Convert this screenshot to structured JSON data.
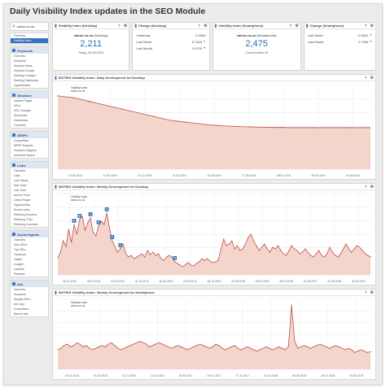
{
  "page": {
    "title": "Daily Visibility Index updates in the SEO Module"
  },
  "colors": {
    "accent": "#3b73c0",
    "line": "#c0504d",
    "fill": "#f4d5cc",
    "negative": "#d9534f"
  },
  "sidebar": {
    "search_value": "sdeon.co.uk",
    "groups": [
      {
        "icon": "search-icon",
        "title": "",
        "items": [
          {
            "label": "Overview",
            "state": ""
          },
          {
            "label": "Visibility Index",
            "state": "active"
          }
        ]
      },
      {
        "icon": "keywords-icon",
        "title": "Keywords",
        "items": [
          {
            "label": "Overview",
            "state": ""
          },
          {
            "label": "Keywords",
            "state": ""
          },
          {
            "label": "Keyword Ideas",
            "state": ""
          },
          {
            "label": "Keyword Groups",
            "state": ""
          },
          {
            "label": "Ranking Changes",
            "state": ""
          },
          {
            "label": "Ranking Distribution",
            "state": ""
          },
          {
            "label": "Opportunities",
            "state": ""
          }
        ]
      },
      {
        "icon": "structure-icon",
        "title": "Structure",
        "items": [
          {
            "label": "Indexed Pages",
            "state": ""
          },
          {
            "label": "URLs",
            "state": ""
          },
          {
            "label": "URL Changes",
            "state": ""
          },
          {
            "label": "Directories",
            "state": ""
          },
          {
            "label": "Hostnames",
            "state": ""
          },
          {
            "label": "Countries",
            "state": ""
          }
        ]
      },
      {
        "icon": "serps-icon",
        "title": "SERPs",
        "items": [
          {
            "label": "Competitors",
            "state": ""
          },
          {
            "label": "SERP Snippets",
            "state": ""
          },
          {
            "label": "Featured Snippets",
            "state": ""
          },
          {
            "label": "Universal Search",
            "state": ""
          }
        ]
      },
      {
        "icon": "links-icon",
        "title": "Links",
        "items": [
          {
            "label": "Overview",
            "state": ""
          },
          {
            "label": "Links",
            "state": ""
          },
          {
            "label": "Link History",
            "state": ""
          },
          {
            "label": "New Links",
            "state": ""
          },
          {
            "label": "Link Texts",
            "state": ""
          },
          {
            "label": "Anchor Texts",
            "state": ""
          },
          {
            "label": "Linked Pages",
            "state": ""
          },
          {
            "label": "Opportunities",
            "state": ""
          },
          {
            "label": "Broken Links",
            "state": ""
          },
          {
            "label": "Referring Domains",
            "state": ""
          },
          {
            "label": "Referring TLDs",
            "state": ""
          },
          {
            "label": "Referring Countries",
            "state": ""
          }
        ]
      },
      {
        "icon": "social-icon",
        "title": "Social Signals",
        "items": [
          {
            "label": "Overview",
            "state": ""
          },
          {
            "label": "New URLs",
            "state": ""
          },
          {
            "label": "Top URLs",
            "state": ""
          },
          {
            "label": "Facebook",
            "state": ""
          },
          {
            "label": "Twitter",
            "state": ""
          },
          {
            "label": "Google+",
            "state": ""
          },
          {
            "label": "LinkedIn",
            "state": ""
          },
          {
            "label": "Pinterest",
            "state": ""
          }
        ]
      },
      {
        "icon": "ads-icon",
        "title": "Ads",
        "items": [
          {
            "label": "Overview",
            "state": ""
          },
          {
            "label": "Keywords",
            "state": ""
          },
          {
            "label": "Display URLs",
            "state": ""
          },
          {
            "label": "Ad Copy",
            "state": ""
          },
          {
            "label": "Competitors",
            "state": ""
          },
          {
            "label": "Banner Ads",
            "state": ""
          }
        ]
      }
    ]
  },
  "cards": {
    "desktop": {
      "title": "Visibility Index (Desktop)",
      "domain": "sdeon.co.uk",
      "device": "(Desktop)",
      "value": "2,211",
      "date": "Today, 20.06.2019"
    },
    "change_desktop": {
      "title": "Change (Desktop)",
      "rows": [
        {
          "label": "Yesterday",
          "value": "0.0000"
        },
        {
          "label": "Last Week",
          "value": "-0.7444"
        },
        {
          "label": "Last Month",
          "value": "-1.0700"
        }
      ]
    },
    "smartphone": {
      "title": "Visibility Index (Smartphone)",
      "domain": "sdeon.co.uk",
      "device": "(Smartphone)",
      "value": "2,475",
      "date": "Current week 25"
    },
    "change_smartphone": {
      "title": "Change (Smartphone)",
      "rows": [
        {
          "label": "Last Week",
          "value": "-0.0821"
        },
        {
          "label": "Last Month",
          "value": "-0.7354"
        }
      ]
    }
  },
  "charts": {
    "daily": {
      "title": "SISTRIX Visibility Index: Daily Development for Desktop",
      "legend": [
        "Visibility Index",
        "sdeon.co.uk"
      ]
    },
    "weekly_desktop": {
      "title": "SISTRIX Visibility Index: Weekly Development for Desktop",
      "legend": [
        "Visibility Index",
        "sdeon.co.uk"
      ]
    },
    "weekly_smartphone": {
      "title": "SISTRIX Visibility Index: Weekly Development for Smartphone",
      "legend": [
        "Visibility Index",
        "sdeon.co.uk"
      ]
    }
  },
  "chart_data": [
    {
      "type": "area",
      "title": "SISTRIX Visibility Index: Daily Development for Desktop",
      "x_tick_labels": [
        "12.06.2018",
        "11.09.2018",
        "10.12.2018",
        "11.03.2019",
        "10.06.2019",
        "17.09.2018",
        "08.01.2019",
        "09.05.2019",
        "02.08.2019"
      ],
      "x_ticks_in_order": [
        "12.06.2018",
        "11.09.2018",
        "10.12.2018",
        "11.03.2019",
        "10.06.2019",
        "17.09.2018",
        "08.01.2019",
        "09.05.2019",
        "02.08.2019"
      ],
      "values": [
        3.9,
        3.85,
        3.8,
        3.7,
        3.6,
        3.5,
        3.4,
        3.3,
        3.2,
        3.1,
        3.0,
        2.9,
        2.8,
        2.7,
        2.6,
        2.55,
        2.5,
        2.45,
        2.4,
        2.35,
        2.33,
        2.3,
        2.28,
        2.26,
        2.25,
        2.24,
        2.23,
        2.22,
        2.22,
        2.21,
        2.21,
        2.21,
        2.21,
        2.21,
        2.21,
        2.21,
        2.21,
        2.21,
        2.21,
        2.21
      ],
      "ylim": [
        0,
        4.5
      ],
      "grid": true
    },
    {
      "type": "area",
      "title": "SISTRIX Visibility Index: Weekly Development for Desktop",
      "x_tick_labels": [
        "06.11.2010",
        "05.07.2011",
        "02.03.2012",
        "31.01.2013",
        "16.06.2013",
        "24.02.2014",
        "26.10.2014",
        "19.06.2015",
        "09.02.2016",
        "28.10.2016",
        "01.08.2017",
        "21.05.2018",
        "16.03.2019"
      ],
      "values": [
        2.1,
        2.8,
        4.2,
        3.5,
        5.6,
        4.0,
        6.2,
        5.0,
        6.8,
        7.2,
        5.5,
        6.4,
        7.0,
        5.2,
        4.8,
        6.0,
        6.6,
        6.2,
        7.6,
        5.8,
        4.2,
        3.5,
        2.8,
        3.2,
        3.8,
        2.6,
        2.2,
        2.4,
        2.0,
        2.2,
        2.4,
        2.6,
        2.2,
        3.0,
        2.5,
        2.8,
        2.4,
        2.6,
        2.0,
        1.8,
        2.2,
        2.4,
        2.2,
        1.6,
        1.4,
        1.2,
        1.0,
        1.3,
        1.5,
        1.2,
        1.1,
        1.4,
        1.6,
        2.0,
        1.8,
        2.0,
        1.7,
        1.5,
        1.6,
        1.8,
        3.2,
        4.4,
        3.6,
        3.8,
        4.2,
        3.2,
        3.6,
        3.0,
        3.2,
        3.8,
        4.6,
        5.0,
        4.2,
        3.6,
        3.0,
        3.4,
        3.8,
        3.2,
        2.8,
        3.4,
        3.2,
        3.6,
        3.0,
        2.6,
        2.4,
        3.0,
        3.6,
        3.2,
        3.0,
        2.6,
        2.8,
        3.2,
        2.8,
        2.4,
        2.2,
        2.6,
        3.0,
        2.4,
        2.2,
        2.6,
        3.4,
        2.8,
        2.4,
        2.2,
        2.6,
        3.2,
        3.8,
        3.2,
        2.8,
        3.2,
        3.6,
        3.4,
        3.0,
        2.6,
        2.4,
        2.2
      ],
      "annotations": [
        "A",
        "B",
        "C",
        "D",
        "E",
        "F",
        "G",
        "H"
      ],
      "ylim": [
        0,
        10
      ],
      "grid": true
    },
    {
      "type": "area",
      "title": "SISTRIX Visibility Index: Weekly Development for Smartphone",
      "x_tick_labels": [
        "02.11.2015",
        "07.03.2016",
        "11.07.2016",
        "14.11.2016",
        "20.03.2017",
        "24.07.2017",
        "27.11.2017",
        "02.04.2018",
        "06.08.2018",
        "10.12.2018",
        "15.04.2019"
      ],
      "values": [
        2.8,
        3.0,
        3.4,
        3.6,
        3.2,
        3.4,
        3.8,
        3.6,
        3.2,
        3.4,
        3.0,
        2.8,
        3.0,
        3.2,
        3.4,
        3.2,
        3.6,
        3.8,
        3.4,
        3.0,
        2.8,
        3.0,
        3.2,
        3.4,
        3.6,
        3.8,
        4.0,
        3.8,
        3.6,
        3.2,
        3.4,
        3.6,
        3.8,
        3.6,
        3.4,
        3.2,
        3.0,
        3.2,
        3.4,
        3.2,
        3.0,
        2.8,
        3.0,
        3.2,
        3.4,
        3.6,
        3.4,
        3.2,
        3.0,
        3.2,
        3.6,
        3.4,
        3.0,
        2.8,
        3.0,
        3.2,
        3.4,
        3.0,
        2.8,
        3.0,
        3.2,
        3.0,
        2.8,
        2.6,
        2.8,
        3.0,
        3.2,
        3.0,
        2.8,
        3.0,
        3.2,
        3.0,
        2.8,
        3.2,
        9.2,
        4.0,
        3.0,
        3.2,
        3.4,
        3.2,
        3.0,
        3.2,
        3.4,
        3.6,
        3.4,
        3.2,
        3.0,
        3.2,
        3.4,
        3.2,
        3.0,
        2.8,
        3.0,
        2.8,
        2.4,
        2.6,
        2.8,
        2.6,
        2.4,
        2.5
      ],
      "ylim": [
        0,
        10
      ],
      "grid": true
    }
  ]
}
